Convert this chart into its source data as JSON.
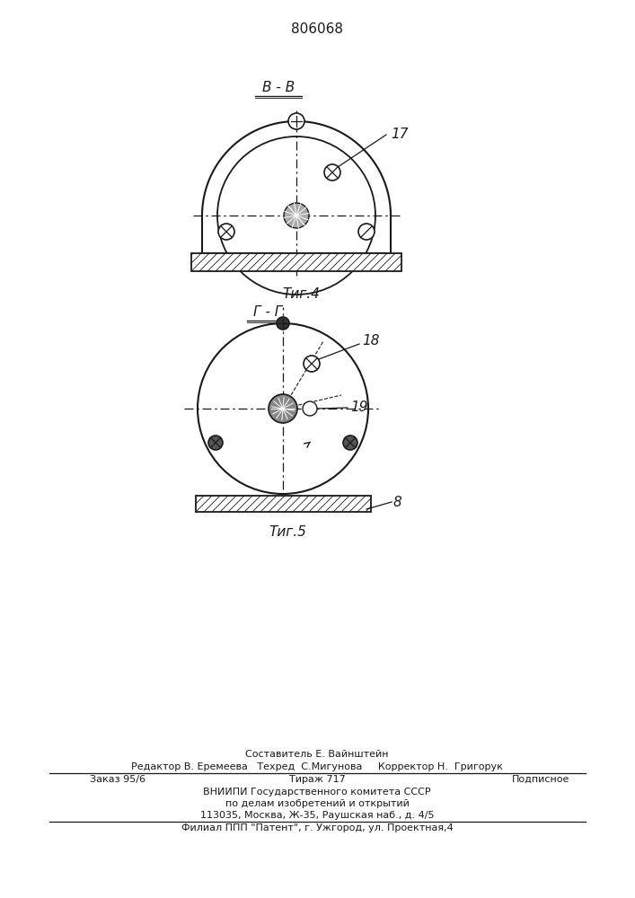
{
  "patent_number": "806068",
  "fig4_label": "В - В",
  "fig4_caption": "Τиг.4",
  "fig5_label": "Г - Г",
  "fig5_caption": "Τиг.5",
  "label_17": "17",
  "label_18": "18",
  "label_19": "19",
  "label_8": "8",
  "footer_line1": "Составитель Е. Вайнштейн",
  "footer_line2": "Редактор В. Еремеева   Техред  С.Мигунова     Корректор Н.  Григорук",
  "footer_line3_left": "Заказ 95/6",
  "footer_line3_mid": "Тираж 717",
  "footer_line3_right": "Подписное",
  "footer_line4": "ВНИИПИ Государственного комитета СССР",
  "footer_line5": "по делам изобретений и открытий",
  "footer_line6": "113035, Москва, Ж-35, Раушская наб., д. 4/5",
  "footer_line7": "Филиал ППП \"Патент\", г. Ужгород, ул. Проектная,4",
  "bg_color": "#ffffff",
  "line_color": "#1a1a1a"
}
